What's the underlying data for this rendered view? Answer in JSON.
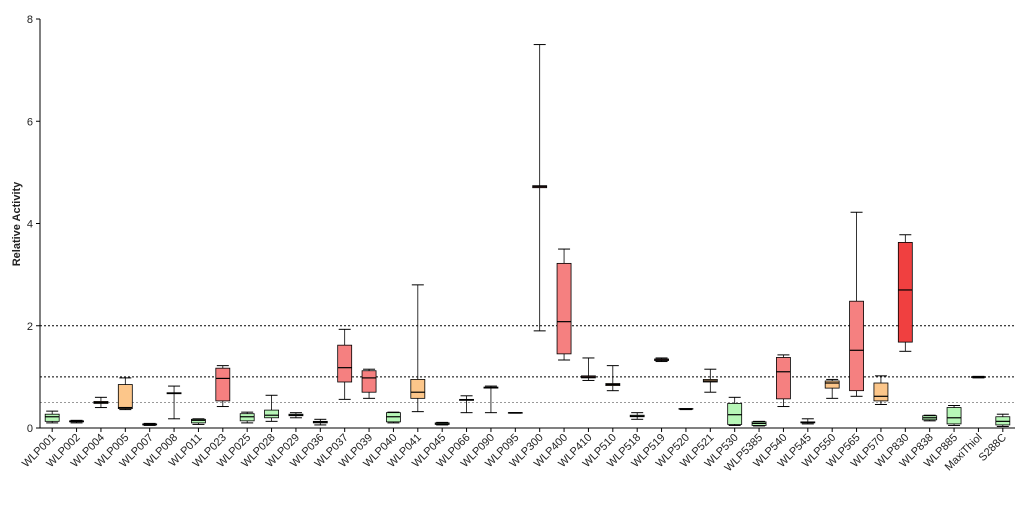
{
  "chart_data": {
    "type": "box",
    "y_label": "Relative Activity",
    "ylim": [
      0,
      8
    ],
    "yticks": [
      0,
      2,
      4,
      6,
      8
    ],
    "reference_lines": [
      {
        "value": 2,
        "color": "#000000"
      },
      {
        "value": 1,
        "color": "#000000"
      },
      {
        "value": 0.5,
        "color": "#999999"
      }
    ],
    "categories": [
      "WLP001",
      "WLP002",
      "WLP004",
      "WLP005",
      "WLP007",
      "WLP008",
      "WLP011",
      "WLP023",
      "WLP025",
      "WLP028",
      "WLP029",
      "WLP036",
      "WLP037",
      "WLP039",
      "WLP040",
      "WLP041",
      "WLP045",
      "WLP066",
      "WLP090",
      "WLP095",
      "WLP300",
      "WLP400",
      "WLP410",
      "WLP510",
      "WLP518",
      "WLP519",
      "WLP520",
      "WLP521",
      "WLP530",
      "WLP5385",
      "WLP540",
      "WLP545",
      "WLP550",
      "WLP565",
      "WLP570",
      "WLP830",
      "WLP838",
      "WLP885",
      "MaxiThiol",
      "S288C"
    ],
    "colors": [
      "#b7f7b7",
      "#b7f7b7",
      "#fcc68a",
      "#fcc68a",
      "#b7f7b7",
      "#fcc68a",
      "#b7f7b7",
      "#f58080",
      "#b7f7b7",
      "#b7f7b7",
      "#b7f7b7",
      "#b7f7b7",
      "#f58080",
      "#f58080",
      "#b7f7b7",
      "#fcc68a",
      "#b7f7b7",
      "#fcc68a",
      "#fcc68a",
      "#b7f7b7",
      "#f58080",
      "#f58080",
      "#f58080",
      "#fcc68a",
      "#b7f7b7",
      "#f58080",
      "#b7f7b7",
      "#fcc68a",
      "#b7f7b7",
      "#b7f7b7",
      "#f58080",
      "#b7f7b7",
      "#fcc68a",
      "#f58080",
      "#fcc68a",
      "#f04040",
      "#b7f7b7",
      "#b7f7b7",
      "#f58080",
      "#b7f7b7"
    ],
    "boxes": [
      {
        "min": 0.1,
        "q1": 0.13,
        "median": 0.22,
        "q3": 0.27,
        "max": 0.33
      },
      {
        "min": 0.1,
        "q1": 0.12,
        "median": 0.13,
        "q3": 0.14,
        "max": 0.15
      },
      {
        "min": 0.4,
        "q1": 0.48,
        "median": 0.5,
        "q3": 0.52,
        "max": 0.6
      },
      {
        "min": 0.36,
        "q1": 0.38,
        "median": 0.4,
        "q3": 0.85,
        "max": 0.98
      },
      {
        "min": 0.05,
        "q1": 0.06,
        "median": 0.07,
        "q3": 0.08,
        "max": 0.09
      },
      {
        "min": 0.18,
        "q1": 0.67,
        "median": 0.68,
        "q3": 0.69,
        "max": 0.82
      },
      {
        "min": 0.07,
        "q1": 0.1,
        "median": 0.15,
        "q3": 0.17,
        "max": 0.18
      },
      {
        "min": 0.42,
        "q1": 0.53,
        "median": 0.97,
        "q3": 1.17,
        "max": 1.22
      },
      {
        "min": 0.1,
        "q1": 0.14,
        "median": 0.22,
        "q3": 0.28,
        "max": 0.31
      },
      {
        "min": 0.13,
        "q1": 0.2,
        "median": 0.25,
        "q3": 0.35,
        "max": 0.64
      },
      {
        "min": 0.2,
        "q1": 0.24,
        "median": 0.25,
        "q3": 0.27,
        "max": 0.3
      },
      {
        "min": 0.06,
        "q1": 0.1,
        "median": 0.12,
        "q3": 0.13,
        "max": 0.17
      },
      {
        "min": 0.56,
        "q1": 0.9,
        "median": 1.18,
        "q3": 1.62,
        "max": 1.93
      },
      {
        "min": 0.58,
        "q1": 0.7,
        "median": 0.98,
        "q3": 1.12,
        "max": 1.15
      },
      {
        "min": 0.1,
        "q1": 0.12,
        "median": 0.22,
        "q3": 0.3,
        "max": 0.31
      },
      {
        "min": 0.32,
        "q1": 0.58,
        "median": 0.7,
        "q3": 0.95,
        "max": 2.8
      },
      {
        "min": 0.06,
        "q1": 0.07,
        "median": 0.08,
        "q3": 0.1,
        "max": 0.11
      },
      {
        "min": 0.3,
        "q1": 0.54,
        "median": 0.55,
        "q3": 0.56,
        "max": 0.63
      },
      {
        "min": 0.3,
        "q1": 0.78,
        "median": 0.79,
        "q3": 0.8,
        "max": 0.82
      },
      {
        "min": 0.29,
        "q1": 0.29,
        "median": 0.3,
        "q3": 0.3,
        "max": 0.3
      },
      {
        "min": 1.9,
        "q1": 4.7,
        "median": 4.72,
        "q3": 4.74,
        "max": 7.5
      },
      {
        "min": 1.33,
        "q1": 1.45,
        "median": 2.08,
        "q3": 3.22,
        "max": 3.5
      },
      {
        "min": 0.93,
        "q1": 0.98,
        "median": 1.0,
        "q3": 1.02,
        "max": 1.37
      },
      {
        "min": 0.73,
        "q1": 0.83,
        "median": 0.85,
        "q3": 0.87,
        "max": 1.22
      },
      {
        "min": 0.17,
        "q1": 0.22,
        "median": 0.23,
        "q3": 0.25,
        "max": 0.3
      },
      {
        "min": 1.3,
        "q1": 1.32,
        "median": 1.33,
        "q3": 1.35,
        "max": 1.37
      },
      {
        "min": 0.36,
        "q1": 0.37,
        "median": 0.37,
        "q3": 0.38,
        "max": 0.38
      },
      {
        "min": 0.7,
        "q1": 0.9,
        "median": 0.92,
        "q3": 0.95,
        "max": 1.15
      },
      {
        "min": 0.05,
        "q1": 0.07,
        "median": 0.26,
        "q3": 0.48,
        "max": 0.6
      },
      {
        "min": 0.04,
        "q1": 0.05,
        "median": 0.09,
        "q3": 0.12,
        "max": 0.13
      },
      {
        "min": 0.42,
        "q1": 0.57,
        "median": 1.1,
        "q3": 1.38,
        "max": 1.43
      },
      {
        "min": 0.08,
        "q1": 0.1,
        "median": 0.11,
        "q3": 0.12,
        "max": 0.18
      },
      {
        "min": 0.58,
        "q1": 0.78,
        "median": 0.88,
        "q3": 0.92,
        "max": 0.95
      },
      {
        "min": 0.62,
        "q1": 0.73,
        "median": 1.52,
        "q3": 2.48,
        "max": 4.22
      },
      {
        "min": 0.46,
        "q1": 0.53,
        "median": 0.62,
        "q3": 0.88,
        "max": 1.02
      },
      {
        "min": 1.5,
        "q1": 1.68,
        "median": 2.7,
        "q3": 3.63,
        "max": 3.78
      },
      {
        "min": 0.14,
        "q1": 0.16,
        "median": 0.2,
        "q3": 0.24,
        "max": 0.25
      },
      {
        "min": 0.05,
        "q1": 0.08,
        "median": 0.2,
        "q3": 0.4,
        "max": 0.44
      },
      {
        "min": 0.98,
        "q1": 0.99,
        "median": 1.0,
        "q3": 1.0,
        "max": 1.01
      },
      {
        "min": 0.03,
        "q1": 0.06,
        "median": 0.13,
        "q3": 0.22,
        "max": 0.27
      }
    ]
  }
}
